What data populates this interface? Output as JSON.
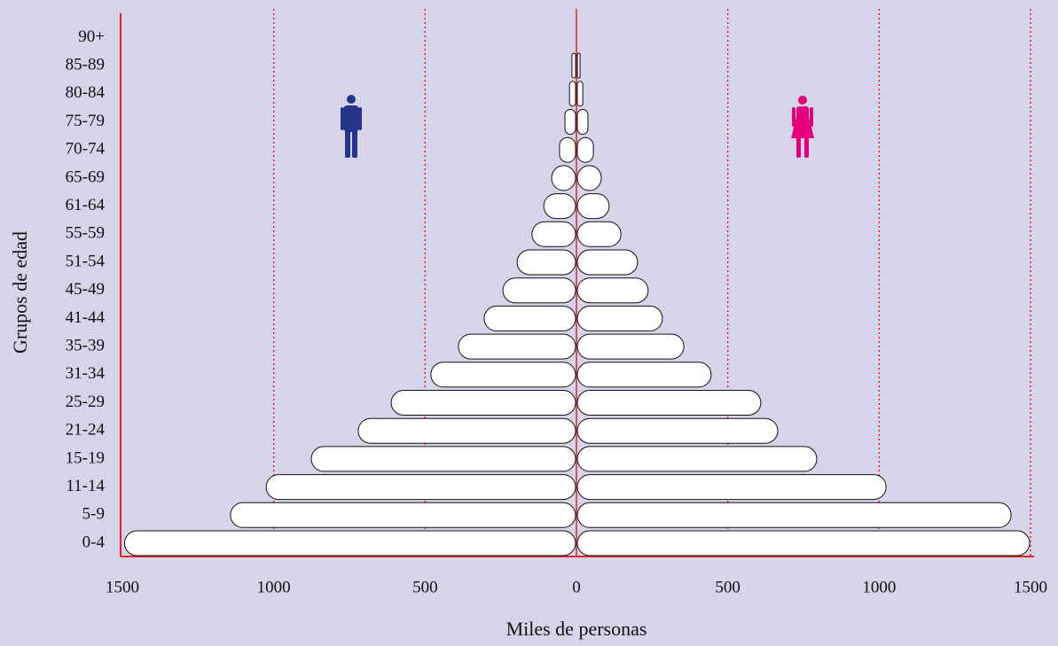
{
  "chart_data": {
    "type": "population-pyramid",
    "y_label": "Grupos de edad",
    "x_label": "Miles de personas",
    "categories": [
      "0-4",
      "5-9",
      "11-14",
      "15-19",
      "21-24",
      "25-29",
      "31-34",
      "35-39",
      "41-44",
      "45-49",
      "51-54",
      "55-59",
      "61-64",
      "65-69",
      "70-74",
      "75-79",
      "80-84",
      "85-89",
      "90+"
    ],
    "series": [
      {
        "color": "#ffffff",
        "values": [
          1490,
          1140,
          1022,
          873,
          718,
          609,
          478,
          387,
          302,
          240,
          193,
          144,
          105,
          79,
          53,
          35,
          20,
          12,
          0
        ]
      },
      {
        "color": "#ffffff",
        "values": [
          1494,
          1433,
          1020,
          791,
          662,
          606,
          442,
          352,
          281,
          234,
          199,
          144,
          105,
          79,
          53,
          35,
          18,
          9,
          0
        ]
      }
    ],
    "xlim": [
      0,
      1500
    ],
    "xticks": [
      0,
      500,
      1000,
      1500
    ],
    "grid": true
  }
}
